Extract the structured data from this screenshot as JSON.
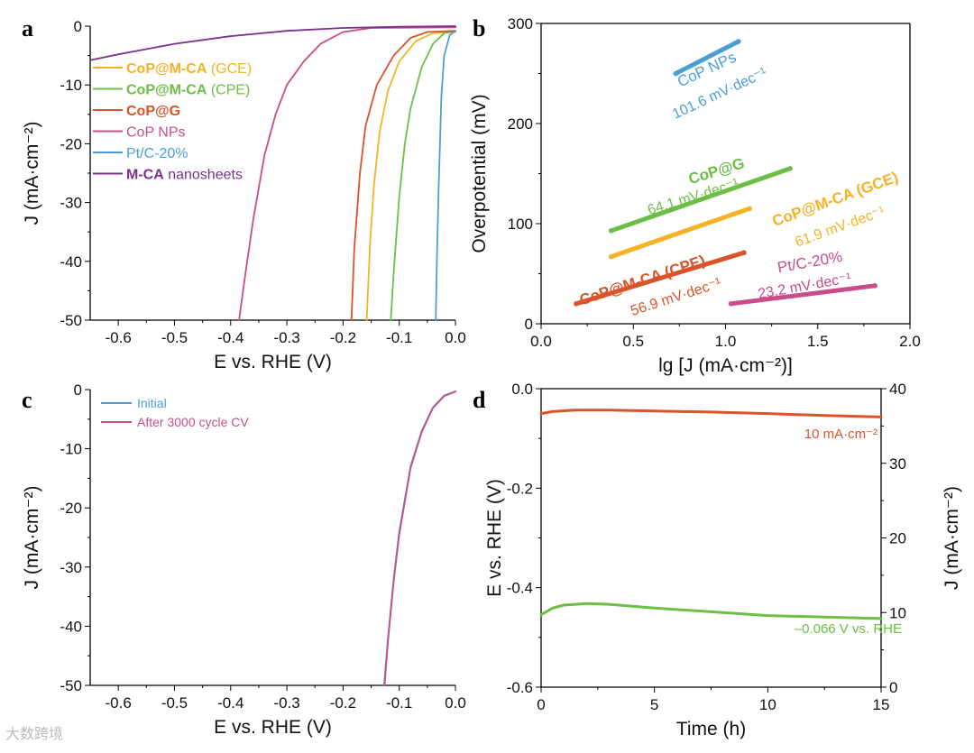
{
  "chart_data": [
    {
      "panel": "a",
      "type": "line",
      "xlabel": "E vs. RHE (V)",
      "ylabel": "J (mA·cm⁻²)",
      "xlim": [
        -0.65,
        0.0
      ],
      "ylim": [
        -50,
        0
      ],
      "xticks": [
        "-0.6",
        "-0.5",
        "-0.4",
        "-0.3",
        "-0.2",
        "-0.1",
        "0.0"
      ],
      "xtick_values": [
        -0.6,
        -0.5,
        -0.4,
        -0.3,
        -0.2,
        -0.1,
        0.0
      ],
      "yticks": [
        "0",
        "-10",
        "-20",
        "-30",
        "-40",
        "-50"
      ],
      "ytick_values": [
        0,
        -10,
        -20,
        -30,
        -40,
        -50
      ],
      "legend_position": "left",
      "series": [
        {
          "name": "CoP@M-CA (GCE)",
          "bold": "CoP@M-CA",
          "rest": " (GCE)",
          "color": "#f5b324",
          "points": [
            [
              0,
              -1
            ],
            [
              -0.04,
              -1.2
            ],
            [
              -0.07,
              -2.5
            ],
            [
              -0.1,
              -6
            ],
            [
              -0.12,
              -11
            ],
            [
              -0.135,
              -18
            ],
            [
              -0.145,
              -27
            ],
            [
              -0.152,
              -37
            ],
            [
              -0.158,
              -50
            ]
          ]
        },
        {
          "name": "CoP@M-CA (CPE)",
          "bold": "CoP@M-CA",
          "rest": " (CPE)",
          "color": "#6cbf45",
          "points": [
            [
              0,
              -0.8
            ],
            [
              -0.02,
              -1.2
            ],
            [
              -0.04,
              -3
            ],
            [
              -0.06,
              -7
            ],
            [
              -0.08,
              -14
            ],
            [
              -0.09,
              -20
            ],
            [
              -0.1,
              -29
            ],
            [
              -0.11,
              -42
            ],
            [
              -0.115,
              -50
            ]
          ]
        },
        {
          "name": "CoP@G",
          "bold": "CoP@G",
          "rest": "",
          "color": "#d9542b",
          "points": [
            [
              0,
              -0.8
            ],
            [
              -0.05,
              -1
            ],
            [
              -0.08,
              -2
            ],
            [
              -0.11,
              -5
            ],
            [
              -0.14,
              -10
            ],
            [
              -0.16,
              -17
            ],
            [
              -0.17,
              -25
            ],
            [
              -0.18,
              -38
            ],
            [
              -0.185,
              -50
            ]
          ]
        },
        {
          "name": "CoP NPs",
          "bold": "",
          "rest": "CoP NPs",
          "color": "#c94d8b",
          "points": [
            [
              0,
              -0.2
            ],
            [
              -0.15,
              -0.3
            ],
            [
              -0.2,
              -1
            ],
            [
              -0.24,
              -3
            ],
            [
              -0.27,
              -6
            ],
            [
              -0.3,
              -10
            ],
            [
              -0.32,
              -15
            ],
            [
              -0.34,
              -22
            ],
            [
              -0.36,
              -33
            ],
            [
              -0.375,
              -43
            ],
            [
              -0.385,
              -50
            ]
          ]
        },
        {
          "name": "Pt/C-20%",
          "bold": "",
          "rest": "Pt/C-20%",
          "color": "#4b9fd5",
          "points": [
            [
              0,
              -0.8
            ],
            [
              -0.01,
              -1.5
            ],
            [
              -0.02,
              -5
            ],
            [
              -0.025,
              -12
            ],
            [
              -0.03,
              -28
            ],
            [
              -0.033,
              -40
            ],
            [
              -0.035,
              -50
            ]
          ]
        },
        {
          "name": "M-CA nanosheets",
          "bold": "M-CA",
          "rest": " nanosheets",
          "color": "#7b2f8e",
          "points": [
            [
              0,
              0
            ],
            [
              -0.1,
              -0.1
            ],
            [
              -0.2,
              -0.3
            ],
            [
              -0.3,
              -0.8
            ],
            [
              -0.4,
              -1.7
            ],
            [
              -0.5,
              -3
            ],
            [
              -0.6,
              -4.8
            ],
            [
              -0.65,
              -5.8
            ]
          ]
        }
      ]
    },
    {
      "panel": "b",
      "type": "scatter",
      "xlabel": "lg [J (mA·cm⁻²)]",
      "ylabel": "Overpotential (mV)",
      "xlim": [
        0.0,
        2.0
      ],
      "ylim": [
        0,
        300
      ],
      "xticks": [
        "0.0",
        "0.5",
        "1.0",
        "1.5",
        "2.0"
      ],
      "xtick_values": [
        0,
        0.5,
        1,
        1.5,
        2
      ],
      "yticks": [
        "0",
        "100",
        "200",
        "300"
      ],
      "ytick_values": [
        0,
        100,
        200,
        300
      ],
      "series": [
        {
          "name": "CoP NPs",
          "slope": "101.6 mV·dec⁻¹",
          "color": "#4b9fd5",
          "label_color": "#4b9fd5",
          "points": [
            [
              0.73,
              250
            ],
            [
              1.07,
              282
            ]
          ]
        },
        {
          "name": "CoP@G",
          "slope": "64.1 mV·dec⁻¹",
          "color": "#6cbf45",
          "label_color": "#6cbf45",
          "points": [
            [
              0.38,
              93
            ],
            [
              1.35,
              155
            ]
          ]
        },
        {
          "name": "CoP@M-CA (GCE)",
          "slope": "61.9 mV·dec⁻¹",
          "color": "#f5b324",
          "label_color": "#f5b324",
          "points": [
            [
              0.38,
              67
            ],
            [
              1.13,
              115
            ]
          ]
        },
        {
          "name": "CoP@M-CA (CPE)",
          "slope": "56.9 mV·dec⁻¹",
          "color": "#d9542b",
          "label_color": "#d9542b",
          "points": [
            [
              0.19,
              20
            ],
            [
              1.1,
              71
            ]
          ]
        },
        {
          "name": "Pt/C-20%",
          "slope": "23.2 mV·dec⁻¹",
          "color": "#c94d8b",
          "label_color": "#c94d8b",
          "points": [
            [
              1.03,
              20
            ],
            [
              1.81,
              38
            ]
          ]
        }
      ]
    },
    {
      "panel": "c",
      "type": "line",
      "xlabel": "E vs. RHE (V)",
      "ylabel": "J (mA·cm⁻²)",
      "xlim": [
        -0.65,
        0.0
      ],
      "ylim": [
        -50,
        0
      ],
      "xticks": [
        "-0.6",
        "-0.5",
        "-0.4",
        "-0.3",
        "-0.2",
        "-0.1",
        "0.0"
      ],
      "xtick_values": [
        -0.6,
        -0.5,
        -0.4,
        -0.3,
        -0.2,
        -0.1,
        0.0
      ],
      "yticks": [
        "0",
        "-10",
        "-20",
        "-30",
        "-40",
        "-50"
      ],
      "ytick_values": [
        0,
        -10,
        -20,
        -30,
        -40,
        -50
      ],
      "legend_position": "top-left",
      "series": [
        {
          "name": "Initial",
          "color": "#4b9fd5",
          "points": [
            [
              0,
              -0.3
            ],
            [
              -0.02,
              -1
            ],
            [
              -0.04,
              -3
            ],
            [
              -0.06,
              -7
            ],
            [
              -0.08,
              -13
            ],
            [
              -0.1,
              -24
            ],
            [
              -0.11,
              -32
            ],
            [
              -0.12,
              -42
            ],
            [
              -0.127,
              -50
            ]
          ]
        },
        {
          "name": "After 3000 cycle CV",
          "color": "#c94d8b",
          "points": [
            [
              0,
              -0.35
            ],
            [
              -0.02,
              -1.1
            ],
            [
              -0.04,
              -3.1
            ],
            [
              -0.06,
              -7.2
            ],
            [
              -0.08,
              -13.3
            ],
            [
              -0.1,
              -24.5
            ],
            [
              -0.11,
              -32.5
            ],
            [
              -0.12,
              -42.5
            ],
            [
              -0.126,
              -50
            ]
          ]
        }
      ]
    },
    {
      "panel": "d",
      "type": "line",
      "xlabel": "Time (h)",
      "ylabel": "E vs. RHE (V)",
      "y2label": "J (mA·cm⁻²)",
      "xlim": [
        0,
        15
      ],
      "ylim": [
        -0.6,
        0.0
      ],
      "y2lim": [
        0,
        40
      ],
      "xticks": [
        "0",
        "5",
        "10",
        "15"
      ],
      "xtick_values": [
        0,
        5,
        10,
        15
      ],
      "yticks": [
        "0.0",
        "-0.2",
        "-0.4",
        "-0.6"
      ],
      "ytick_values": [
        0,
        -0.2,
        -0.4,
        -0.6
      ],
      "y2ticks": [
        "40",
        "30",
        "20",
        "10",
        "0"
      ],
      "y2tick_values": [
        40,
        30,
        20,
        10,
        0
      ],
      "series": [
        {
          "name": "10 mA·cm⁻²",
          "axis": "left",
          "color": "#d9542b",
          "points": [
            [
              0,
              -0.05
            ],
            [
              0.5,
              -0.046
            ],
            [
              1.5,
              -0.043
            ],
            [
              3,
              -0.043
            ],
            [
              5,
              -0.045
            ],
            [
              7.5,
              -0.047
            ],
            [
              10,
              -0.05
            ],
            [
              12.5,
              -0.054
            ],
            [
              15,
              -0.057
            ]
          ]
        },
        {
          "name": "–0.066 V vs. RHE",
          "axis": "right",
          "color": "#6cbf45",
          "points": [
            [
              0,
              9.7
            ],
            [
              0.5,
              10.6
            ],
            [
              1,
              11.0
            ],
            [
              2,
              11.2
            ],
            [
              3,
              11.1
            ],
            [
              5,
              10.6
            ],
            [
              7.5,
              10.1
            ],
            [
              10,
              9.6
            ],
            [
              12.5,
              9.4
            ],
            [
              15,
              9.2
            ]
          ]
        }
      ]
    }
  ],
  "panel_labels": [
    "a",
    "b",
    "c",
    "d"
  ],
  "watermark": "大数跨境"
}
